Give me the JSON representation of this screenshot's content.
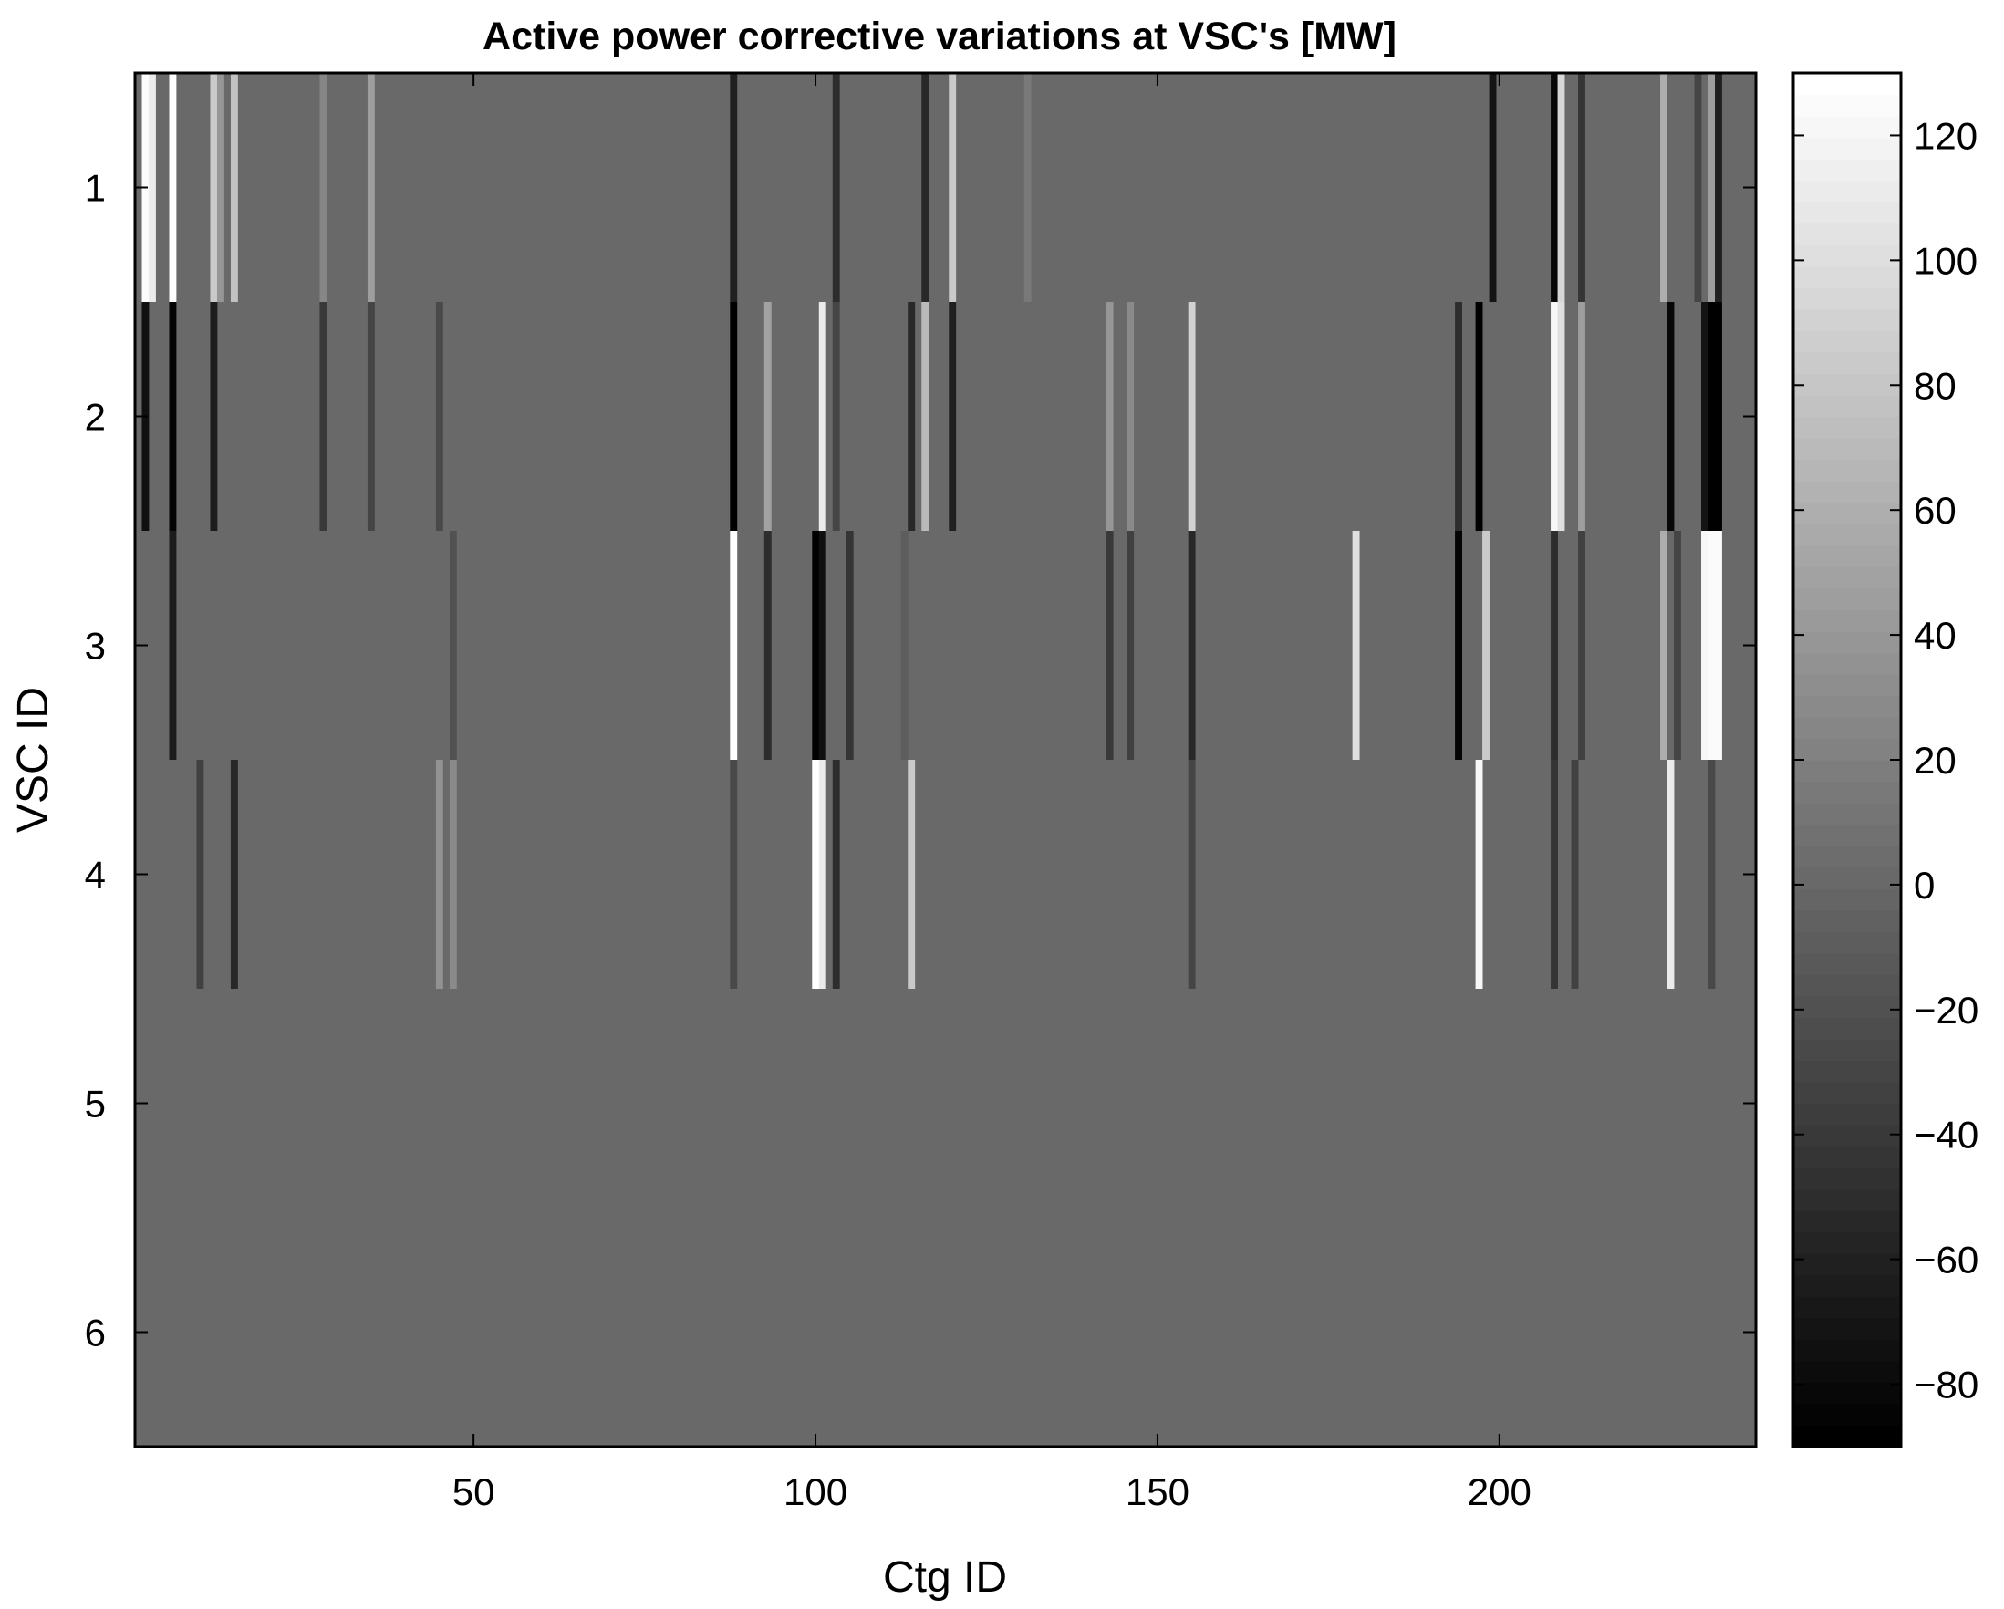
{
  "chart_data": {
    "type": "heatmap",
    "title": "Active power corrective variations at VSC's [MW]",
    "xlabel": "Ctg ID",
    "ylabel": "VSC ID",
    "x_range": [
      0.5,
      237.5
    ],
    "y_range": [
      0.5,
      6.5
    ],
    "x_ticks": [
      50,
      100,
      150,
      200
    ],
    "y_ticks": [
      1,
      2,
      3,
      4,
      5,
      6
    ],
    "colorbar": {
      "range": [
        -90,
        130
      ],
      "ticks": [
        -80,
        -60,
        -40,
        -20,
        0,
        20,
        40,
        60,
        80,
        100,
        120
      ],
      "tick_labels": [
        "−80",
        "−60",
        "−40",
        "−20",
        "0",
        "20",
        "40",
        "60",
        "80",
        "100",
        "120"
      ],
      "colormap": "gray"
    },
    "default_value": 0,
    "rows": [
      {
        "vsc": 1,
        "cells": [
          [
            2,
            125
          ],
          [
            3,
            110
          ],
          [
            6,
            130
          ],
          [
            12,
            85
          ],
          [
            13,
            40
          ],
          [
            15,
            75
          ],
          [
            28,
            25
          ],
          [
            35,
            45
          ],
          [
            88,
            -60
          ],
          [
            103,
            -50
          ],
          [
            116,
            -55
          ],
          [
            120,
            85
          ],
          [
            131,
            15
          ],
          [
            199,
            -70
          ],
          [
            208,
            -80
          ],
          [
            209,
            95
          ],
          [
            212,
            -45
          ],
          [
            224,
            60
          ],
          [
            229,
            -30
          ],
          [
            231,
            45
          ],
          [
            232,
            -60
          ]
        ]
      },
      {
        "vsc": 2,
        "cells": [
          [
            2,
            -75
          ],
          [
            6,
            -85
          ],
          [
            12,
            -65
          ],
          [
            28,
            -40
          ],
          [
            35,
            -30
          ],
          [
            45,
            -25
          ],
          [
            88,
            -90
          ],
          [
            93,
            50
          ],
          [
            101,
            110
          ],
          [
            103,
            -30
          ],
          [
            114,
            -55
          ],
          [
            116,
            70
          ],
          [
            120,
            -60
          ],
          [
            143,
            40
          ],
          [
            146,
            30
          ],
          [
            155,
            90
          ],
          [
            194,
            -50
          ],
          [
            197,
            -90
          ],
          [
            208,
            120
          ],
          [
            209,
            100
          ],
          [
            212,
            45
          ],
          [
            225,
            -80
          ],
          [
            230,
            -70
          ],
          [
            231,
            -90
          ],
          [
            232,
            -90
          ]
        ]
      },
      {
        "vsc": 3,
        "cells": [
          [
            6,
            -65
          ],
          [
            47,
            -20
          ],
          [
            88,
            130
          ],
          [
            93,
            -50
          ],
          [
            100,
            -90
          ],
          [
            101,
            -75
          ],
          [
            105,
            -45
          ],
          [
            113,
            -10
          ],
          [
            143,
            -40
          ],
          [
            146,
            -35
          ],
          [
            155,
            -55
          ],
          [
            179,
            100
          ],
          [
            194,
            -85
          ],
          [
            198,
            85
          ],
          [
            208,
            -50
          ],
          [
            212,
            -35
          ],
          [
            224,
            60
          ],
          [
            226,
            -30
          ],
          [
            230,
            120
          ],
          [
            231,
            125
          ],
          [
            232,
            125
          ]
        ]
      },
      {
        "vsc": 4,
        "cells": [
          [
            10,
            -35
          ],
          [
            15,
            -55
          ],
          [
            45,
            35
          ],
          [
            47,
            30
          ],
          [
            88,
            -25
          ],
          [
            100,
            130
          ],
          [
            101,
            110
          ],
          [
            103,
            -50
          ],
          [
            114,
            85
          ],
          [
            155,
            -30
          ],
          [
            197,
            120
          ],
          [
            208,
            -45
          ],
          [
            211,
            -35
          ],
          [
            225,
            110
          ],
          [
            231,
            -25
          ]
        ]
      },
      {
        "vsc": 5,
        "cells": []
      },
      {
        "vsc": 6,
        "cells": []
      }
    ]
  }
}
